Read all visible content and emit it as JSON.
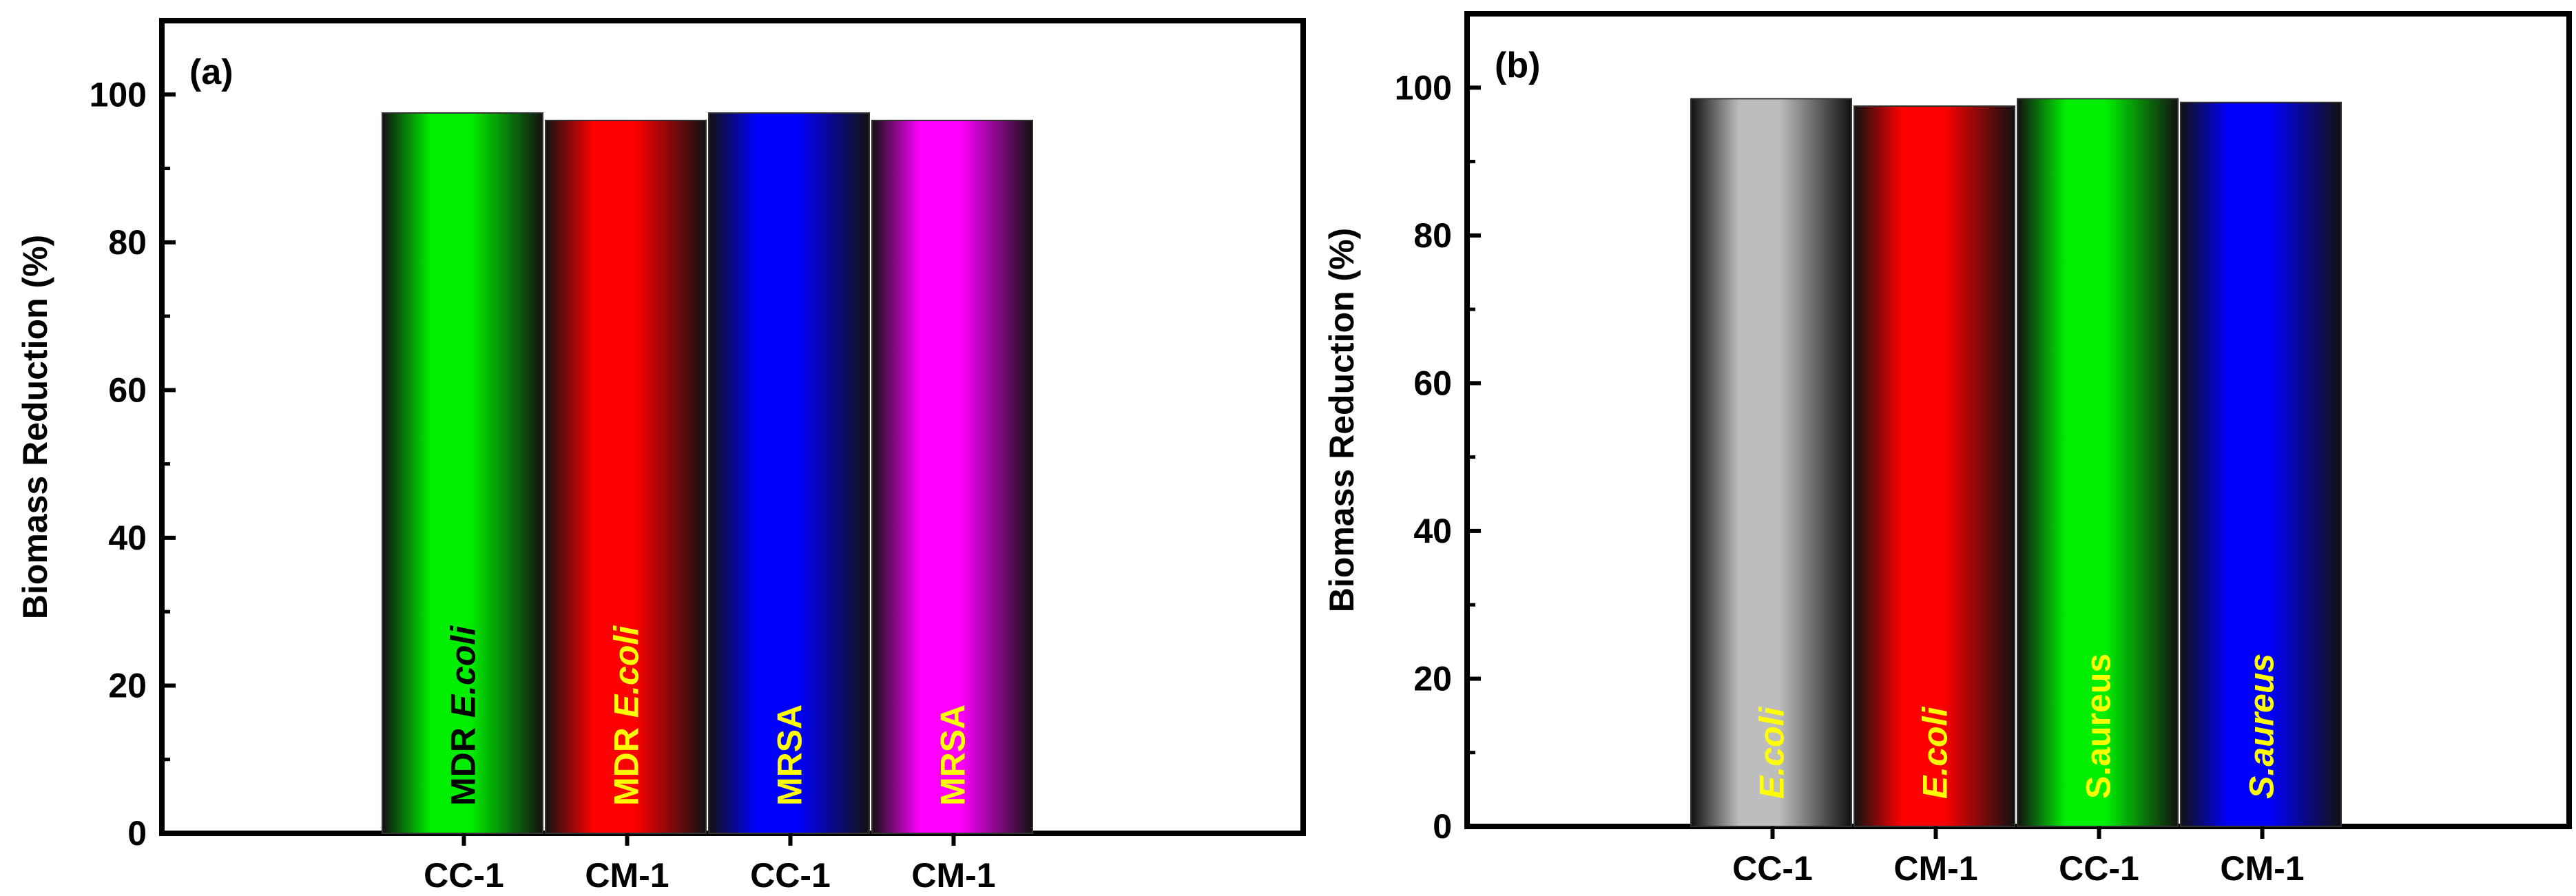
{
  "chart_data": [
    {
      "type": "bar",
      "panel_label": "(a)",
      "categories": [
        "CC-1",
        "CM-1",
        "CC-1",
        "CM-1"
      ],
      "values": [
        97.5,
        96.5,
        97.5,
        96.5
      ],
      "bar_labels": [
        {
          "prefix": "MDR ",
          "italic": "E.coli"
        },
        {
          "prefix": "MDR ",
          "italic": "E.coli"
        },
        {
          "prefix": "MRSA",
          "italic": ""
        },
        {
          "prefix": "MRSA",
          "italic": ""
        }
      ],
      "bar_colors": [
        "#00ee00",
        "#ff0000",
        "#0000ff",
        "#ff00ff"
      ],
      "bar_label_colors": [
        "#000000",
        "#ffff00",
        "#ffff00",
        "#ffff00"
      ],
      "xlabel": "",
      "ylabel": "Biomass Reduction (%)",
      "ylim": [
        0,
        110
      ],
      "yticks": [
        0,
        20,
        40,
        60,
        80,
        100
      ],
      "grid": false
    },
    {
      "type": "bar",
      "panel_label": "(b)",
      "categories": [
        "CC-1",
        "CM-1",
        "CC-1",
        "CM-1"
      ],
      "values": [
        98.5,
        97.5,
        98.5,
        98.0
      ],
      "bar_labels": [
        {
          "prefix": "",
          "italic": "E.coli"
        },
        {
          "prefix": "",
          "italic": "E.coli"
        },
        {
          "prefix": "S.aureus",
          "italic": ""
        },
        {
          "prefix": "",
          "italic": "S.aureus"
        }
      ],
      "bar_colors": [
        "#bdbdbd",
        "#ff0000",
        "#00ee00",
        "#0000ff"
      ],
      "bar_label_colors": [
        "#ffff00",
        "#ffff00",
        "#ffff00",
        "#ffff00"
      ],
      "xlabel": "",
      "ylabel": "Biomass Reduction (%)",
      "ylim": [
        0,
        110
      ],
      "yticks": [
        0,
        20,
        40,
        60,
        80,
        100
      ],
      "grid": false
    }
  ]
}
